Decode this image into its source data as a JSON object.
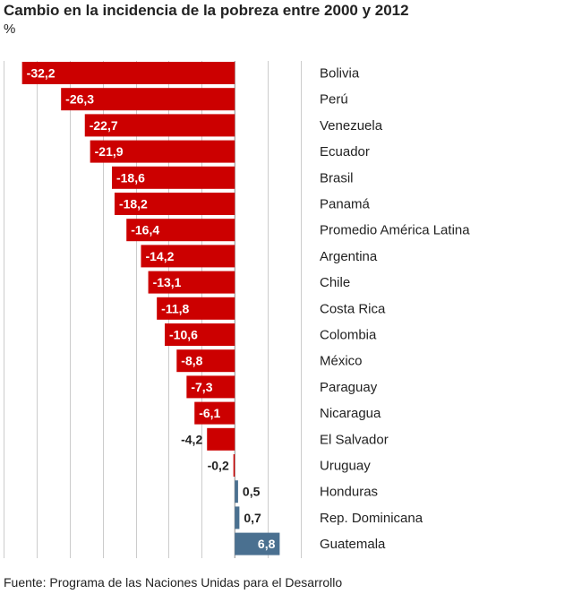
{
  "chart_data": {
    "type": "bar",
    "orientation": "horizontal",
    "title": "Cambio en la incidencia de la pobreza entre 2000 y 2012",
    "subtitle": "%",
    "source": "Fuente: Programa de las Naciones Unidas para el Desarrollo",
    "xlim": [
      -35,
      10
    ],
    "grid": true,
    "categories": [
      "Bolivia",
      "Perú",
      "Venezuela",
      "Ecuador",
      "Brasil",
      "Panamá",
      "Promedio América Latina",
      "Argentina",
      "Chile",
      "Costa Rica",
      "Colombia",
      "México",
      "Paraguay",
      "Nicaragua",
      "El Salvador",
      "Uruguay",
      "Honduras",
      "Rep. Dominicana",
      "Guatemala"
    ],
    "values": [
      -32.2,
      -26.3,
      -22.7,
      -21.9,
      -18.6,
      -18.2,
      -16.4,
      -14.2,
      -13.1,
      -11.8,
      -10.6,
      -8.8,
      -7.3,
      -6.1,
      -4.2,
      -0.2,
      0.5,
      0.7,
      6.8
    ],
    "value_labels": [
      "-32,2",
      "-26,3",
      "-22,7",
      "-21,9",
      "-18,6",
      "-18,2",
      "-16,4",
      "-14,2",
      "-13,1",
      "-11,8",
      "-10,6",
      "-8,8",
      "-7,3",
      "-6,1",
      "-4,2",
      "-0,2",
      "0,5",
      "0,7",
      "6,8"
    ],
    "colors": {
      "negative": "#cc0000",
      "positive": "#4a7090",
      "grid": "#cccccc",
      "label_inside": "#ffffff",
      "label_outside": "#222222"
    }
  }
}
